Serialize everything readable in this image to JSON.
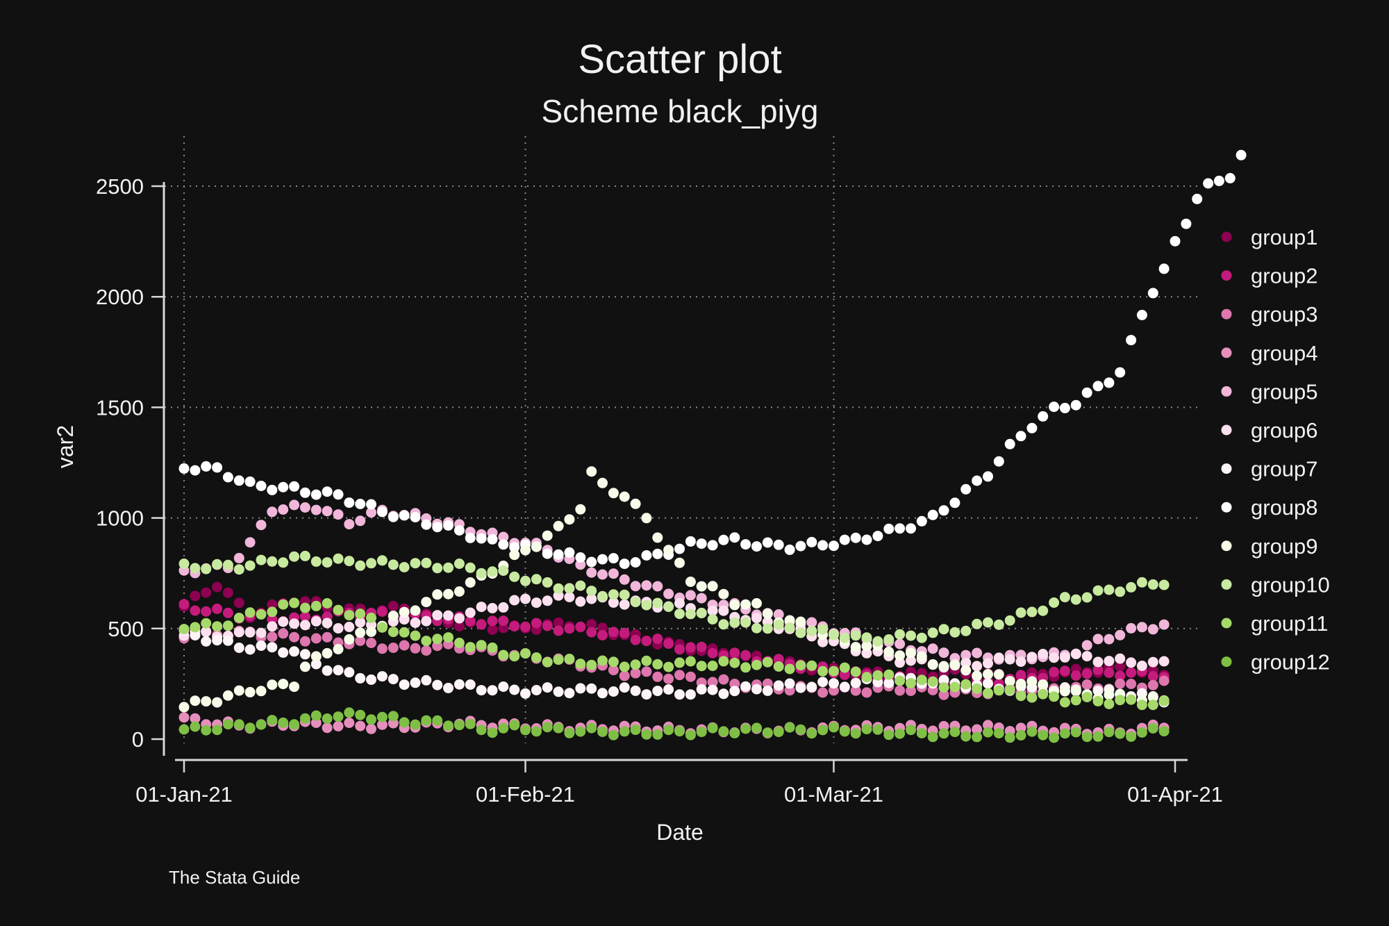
{
  "chart_data": {
    "type": "scatter",
    "title": "Scatter plot",
    "subtitle": "Scheme black_piyg",
    "xlabel": "Date",
    "ylabel": "var2",
    "note": "The Stata Guide",
    "x_start": "2021-01-01",
    "xlim": [
      "2021-01-01",
      "2021-04-01"
    ],
    "x_ticks": [
      {
        "date": "2021-01-01",
        "label": "01-Jan-21"
      },
      {
        "date": "2021-02-01",
        "label": "01-Feb-21"
      },
      {
        "date": "2021-03-01",
        "label": "01-Mar-21"
      },
      {
        "date": "2021-04-01",
        "label": "01-Apr-21"
      }
    ],
    "ylim": [
      0,
      2500
    ],
    "y_ticks": [
      0,
      500,
      1000,
      1500,
      2000,
      2500
    ],
    "grid": true,
    "legend_position": "right",
    "series": [
      {
        "name": "group1",
        "color": "#8e0152",
        "anchors": [
          [
            0,
            600
          ],
          [
            3,
            700
          ],
          [
            6,
            560
          ],
          [
            10,
            630
          ],
          [
            15,
            580
          ],
          [
            20,
            590
          ],
          [
            25,
            520
          ],
          [
            30,
            500
          ],
          [
            35,
            520
          ],
          [
            38,
            500
          ],
          [
            40,
            470
          ],
          [
            45,
            420
          ],
          [
            50,
            380
          ],
          [
            55,
            340
          ],
          [
            60,
            300
          ],
          [
            65,
            290
          ],
          [
            70,
            300
          ],
          [
            75,
            280
          ],
          [
            80,
            300
          ],
          [
            85,
            320
          ],
          [
            89,
            290
          ]
        ]
      },
      {
        "name": "group2",
        "color": "#c51b7d",
        "anchors": [
          [
            0,
            600
          ],
          [
            5,
            560
          ],
          [
            10,
            540
          ],
          [
            15,
            570
          ],
          [
            20,
            560
          ],
          [
            25,
            540
          ],
          [
            30,
            520
          ],
          [
            35,
            500
          ],
          [
            40,
            470
          ],
          [
            45,
            420
          ],
          [
            50,
            380
          ],
          [
            55,
            340
          ],
          [
            60,
            300
          ],
          [
            65,
            270
          ],
          [
            70,
            240
          ],
          [
            75,
            270
          ],
          [
            80,
            300
          ],
          [
            85,
            300
          ],
          [
            89,
            290
          ]
        ]
      },
      {
        "name": "group3",
        "color": "#de77ae",
        "anchors": [
          [
            0,
            470
          ],
          [
            5,
            480
          ],
          [
            10,
            460
          ],
          [
            15,
            440
          ],
          [
            20,
            410
          ],
          [
            25,
            420
          ],
          [
            30,
            380
          ],
          [
            35,
            350
          ],
          [
            40,
            300
          ],
          [
            45,
            280
          ],
          [
            50,
            250
          ],
          [
            55,
            230
          ],
          [
            60,
            220
          ],
          [
            65,
            230
          ],
          [
            70,
            210
          ],
          [
            75,
            220
          ],
          [
            80,
            230
          ],
          [
            85,
            240
          ],
          [
            89,
            250
          ]
        ]
      },
      {
        "name": "group4",
        "color": "#e68fbd",
        "anchors": [
          [
            0,
            90
          ],
          [
            5,
            60
          ],
          [
            10,
            70
          ],
          [
            15,
            60
          ],
          [
            20,
            60
          ],
          [
            25,
            70
          ],
          [
            30,
            60
          ],
          [
            35,
            50
          ],
          [
            40,
            50
          ],
          [
            45,
            40
          ],
          [
            50,
            40
          ],
          [
            55,
            40
          ],
          [
            60,
            50
          ],
          [
            65,
            50
          ],
          [
            70,
            50
          ],
          [
            75,
            50
          ],
          [
            80,
            40
          ],
          [
            85,
            30
          ],
          [
            89,
            60
          ]
        ]
      },
      {
        "name": "group5",
        "color": "#f1b6da",
        "anchors": [
          [
            0,
            760
          ],
          [
            4,
            780
          ],
          [
            6,
            880
          ],
          [
            8,
            1040
          ],
          [
            12,
            1050
          ],
          [
            15,
            980
          ],
          [
            18,
            1030
          ],
          [
            22,
            1000
          ],
          [
            25,
            960
          ],
          [
            28,
            920
          ],
          [
            30,
            900
          ],
          [
            33,
            860
          ],
          [
            36,
            780
          ],
          [
            40,
            720
          ],
          [
            45,
            650
          ],
          [
            50,
            600
          ],
          [
            55,
            540
          ],
          [
            60,
            480
          ],
          [
            65,
            420
          ],
          [
            70,
            380
          ],
          [
            75,
            370
          ],
          [
            80,
            380
          ],
          [
            85,
            480
          ],
          [
            89,
            520
          ]
        ]
      },
      {
        "name": "group6",
        "color": "#fde0ef",
        "anchors": [
          [
            0,
            480
          ],
          [
            5,
            470
          ],
          [
            10,
            530
          ],
          [
            15,
            510
          ],
          [
            20,
            530
          ],
          [
            25,
            560
          ],
          [
            30,
            620
          ],
          [
            35,
            640
          ],
          [
            40,
            620
          ],
          [
            45,
            600
          ],
          [
            50,
            560
          ],
          [
            55,
            500
          ],
          [
            60,
            420
          ],
          [
            65,
            360
          ],
          [
            70,
            330
          ],
          [
            75,
            360
          ],
          [
            80,
            380
          ],
          [
            85,
            350
          ],
          [
            89,
            340
          ]
        ]
      },
      {
        "name": "group7",
        "color": "#fdf4f8",
        "anchors": [
          [
            0,
            480
          ],
          [
            5,
            420
          ],
          [
            10,
            400
          ],
          [
            12,
            340
          ],
          [
            15,
            290
          ],
          [
            20,
            260
          ],
          [
            25,
            240
          ],
          [
            30,
            220
          ],
          [
            35,
            220
          ],
          [
            40,
            220
          ],
          [
            45,
            210
          ],
          [
            50,
            220
          ],
          [
            55,
            240
          ],
          [
            60,
            250
          ],
          [
            65,
            270
          ],
          [
            70,
            250
          ],
          [
            75,
            230
          ],
          [
            80,
            220
          ],
          [
            85,
            210
          ],
          [
            89,
            180
          ]
        ]
      },
      {
        "name": "group8",
        "color": "#ffffff",
        "anchors": [
          [
            0,
            1230
          ],
          [
            3,
            1220
          ],
          [
            6,
            1150
          ],
          [
            10,
            1130
          ],
          [
            14,
            1100
          ],
          [
            18,
            1030
          ],
          [
            22,
            980
          ],
          [
            25,
            940
          ],
          [
            28,
            890
          ],
          [
            30,
            880
          ],
          [
            33,
            850
          ],
          [
            36,
            820
          ],
          [
            40,
            800
          ],
          [
            43,
            830
          ],
          [
            46,
            880
          ],
          [
            50,
            900
          ],
          [
            52,
            880
          ],
          [
            55,
            870
          ],
          [
            58,
            880
          ],
          [
            61,
            900
          ],
          [
            65,
            950
          ],
          [
            68,
            1000
          ],
          [
            70,
            1080
          ],
          [
            73,
            1200
          ],
          [
            75,
            1320
          ],
          [
            77,
            1420
          ],
          [
            79,
            1490
          ],
          [
            81,
            1520
          ],
          [
            83,
            1590
          ],
          [
            85,
            1660
          ],
          [
            86,
            1790
          ],
          [
            87,
            1920
          ],
          [
            88,
            2030
          ],
          [
            89,
            2120
          ],
          [
            90,
            2240
          ],
          [
            91,
            2340
          ],
          [
            92,
            2450
          ],
          [
            93,
            2500
          ],
          [
            94,
            2520
          ],
          [
            95,
            2550
          ],
          [
            96,
            2640
          ]
        ]
      },
      {
        "name": "group9",
        "color": "#f7fce9",
        "anchors": [
          [
            0,
            150
          ],
          [
            3,
            180
          ],
          [
            6,
            220
          ],
          [
            10,
            250
          ],
          [
            11,
            330
          ],
          [
            14,
            420
          ],
          [
            18,
            520
          ],
          [
            22,
            620
          ],
          [
            26,
            700
          ],
          [
            30,
            820
          ],
          [
            34,
            950
          ],
          [
            36,
            1050
          ],
          [
            37,
            1200
          ],
          [
            38,
            1150
          ],
          [
            40,
            1100
          ],
          [
            42,
            1000
          ],
          [
            44,
            850
          ],
          [
            46,
            720
          ],
          [
            48,
            680
          ],
          [
            50,
            620
          ],
          [
            52,
            600
          ],
          [
            54,
            540
          ],
          [
            56,
            520
          ],
          [
            58,
            480
          ],
          [
            60,
            440
          ],
          [
            64,
            400
          ],
          [
            66,
            380
          ],
          [
            68,
            350
          ],
          [
            70,
            320
          ],
          [
            72,
            300
          ],
          [
            74,
            280
          ],
          [
            78,
            240
          ],
          [
            82,
            200
          ],
          [
            86,
            190
          ],
          [
            89,
            170
          ]
        ]
      },
      {
        "name": "group10",
        "color": "#c8eaa0",
        "anchors": [
          [
            0,
            780
          ],
          [
            5,
            780
          ],
          [
            10,
            820
          ],
          [
            15,
            800
          ],
          [
            20,
            790
          ],
          [
            25,
            780
          ],
          [
            30,
            740
          ],
          [
            33,
            700
          ],
          [
            36,
            680
          ],
          [
            40,
            640
          ],
          [
            45,
            580
          ],
          [
            50,
            520
          ],
          [
            55,
            500
          ],
          [
            60,
            470
          ],
          [
            62,
            450
          ],
          [
            65,
            460
          ],
          [
            70,
            490
          ],
          [
            75,
            540
          ],
          [
            80,
            630
          ],
          [
            85,
            680
          ],
          [
            89,
            710
          ]
        ]
      },
      {
        "name": "group11",
        "color": "#a6d96a",
        "anchors": [
          [
            0,
            510
          ],
          [
            3,
            510
          ],
          [
            6,
            560
          ],
          [
            10,
            610
          ],
          [
            13,
            600
          ],
          [
            16,
            560
          ],
          [
            20,
            470
          ],
          [
            25,
            440
          ],
          [
            30,
            380
          ],
          [
            35,
            350
          ],
          [
            40,
            340
          ],
          [
            45,
            340
          ],
          [
            50,
            340
          ],
          [
            55,
            330
          ],
          [
            60,
            310
          ],
          [
            65,
            270
          ],
          [
            70,
            240
          ],
          [
            75,
            210
          ],
          [
            80,
            180
          ],
          [
            85,
            170
          ],
          [
            89,
            160
          ]
        ]
      },
      {
        "name": "group12",
        "color": "#7fbf46",
        "anchors": [
          [
            0,
            40
          ],
          [
            5,
            60
          ],
          [
            10,
            80
          ],
          [
            14,
            110
          ],
          [
            18,
            100
          ],
          [
            20,
            80
          ],
          [
            25,
            70
          ],
          [
            27,
            40
          ],
          [
            30,
            50
          ],
          [
            35,
            40
          ],
          [
            40,
            30
          ],
          [
            45,
            30
          ],
          [
            50,
            40
          ],
          [
            55,
            40
          ],
          [
            60,
            40
          ],
          [
            65,
            30
          ],
          [
            70,
            20
          ],
          [
            75,
            20
          ],
          [
            80,
            20
          ],
          [
            85,
            20
          ],
          [
            89,
            40
          ]
        ]
      }
    ]
  }
}
